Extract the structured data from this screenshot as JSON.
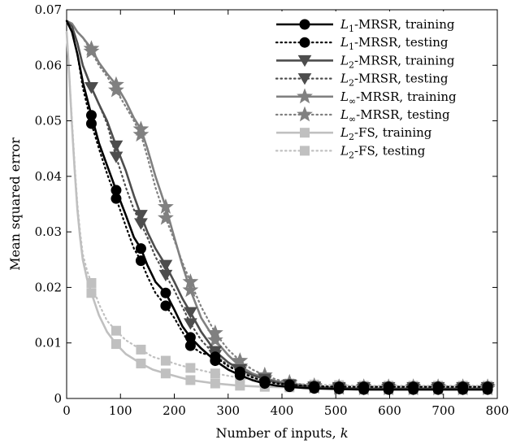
{
  "chart_data": {
    "type": "line",
    "xlabel_text": "Number of inputs, ",
    "xlabel_var": "k",
    "ylabel": "Mean squared error",
    "xlim": [
      0,
      800
    ],
    "ylim": [
      0,
      0.07
    ],
    "xticks": [
      0,
      100,
      200,
      300,
      400,
      500,
      600,
      700,
      800
    ],
    "yticks": [
      0,
      0.01,
      0.02,
      0.03,
      0.04,
      0.05,
      0.06,
      0.07
    ],
    "xtick_labels": [
      "0",
      "100",
      "200",
      "300",
      "400",
      "500",
      "600",
      "700",
      "800"
    ],
    "ytick_labels": [
      "0",
      "0.01",
      "0.02",
      "0.03",
      "0.04",
      "0.05",
      "0.06",
      "0.07"
    ],
    "grid": false,
    "legend_position": "top-right",
    "marker_x": [
      46,
      92,
      138,
      184,
      230,
      276,
      322,
      368,
      414,
      460,
      506,
      552,
      598,
      644,
      690,
      736,
      782
    ],
    "series": [
      {
        "name_var": "L",
        "name_sub": "1",
        "name_rest": "-MRSR, training",
        "color": "#000000",
        "dash": "solid",
        "marker": "circle",
        "x": [
          0,
          10,
          20,
          30,
          46,
          60,
          75,
          92,
          110,
          125,
          138,
          150,
          165,
          184,
          200,
          215,
          230,
          250,
          276,
          300,
          322,
          345,
          368,
          390,
          414,
          440,
          460,
          506,
          552,
          598,
          644,
          690,
          736,
          782
        ],
        "y": [
          0.068,
          0.066,
          0.062,
          0.057,
          0.051,
          0.046,
          0.042,
          0.0375,
          0.033,
          0.029,
          0.027,
          0.024,
          0.021,
          0.019,
          0.016,
          0.013,
          0.011,
          0.009,
          0.0068,
          0.0052,
          0.0042,
          0.0033,
          0.0027,
          0.0023,
          0.0021,
          0.0019,
          0.0018,
          0.0017,
          0.0016,
          0.0016,
          0.0016,
          0.0016,
          0.0016,
          0.0016
        ],
        "marker_y": [
          0.051,
          0.0375,
          0.027,
          0.019,
          0.011,
          0.0068,
          0.0042,
          0.0027,
          0.0021,
          0.0018,
          0.0017,
          0.0016,
          0.0016,
          0.0016,
          0.0016,
          0.0016,
          0.0016
        ]
      },
      {
        "name_var": "L",
        "name_sub": "1",
        "name_rest": "-MRSR, testing",
        "color": "#000000",
        "dash": "dotted",
        "marker": "circle",
        "x": [
          0,
          10,
          20,
          30,
          46,
          60,
          75,
          92,
          110,
          125,
          138,
          150,
          165,
          184,
          200,
          215,
          230,
          250,
          276,
          300,
          322,
          345,
          368,
          390,
          414,
          440,
          460,
          506,
          552,
          598,
          644,
          690,
          736,
          782
        ],
        "y": [
          0.068,
          0.066,
          0.062,
          0.056,
          0.0495,
          0.045,
          0.0405,
          0.036,
          0.031,
          0.027,
          0.0248,
          0.022,
          0.019,
          0.0167,
          0.0145,
          0.012,
          0.0095,
          0.0082,
          0.0075,
          0.0058,
          0.0048,
          0.0038,
          0.0031,
          0.0027,
          0.0025,
          0.0023,
          0.0022,
          0.0021,
          0.0021,
          0.0021,
          0.0021,
          0.0021,
          0.0021,
          0.0021
        ],
        "marker_y": [
          0.0495,
          0.036,
          0.0248,
          0.0167,
          0.0095,
          0.0075,
          0.0048,
          0.0031,
          0.0025,
          0.0022,
          0.0021,
          0.0021,
          0.0021,
          0.0021,
          0.0021,
          0.0021,
          0.0021
        ]
      },
      {
        "name_var": "L",
        "name_sub": "2",
        "name_rest": "-MRSR, training",
        "color": "#4d4d4d",
        "dash": "solid",
        "marker": "triangle",
        "x": [
          0,
          10,
          20,
          30,
          46,
          60,
          75,
          92,
          110,
          125,
          138,
          150,
          165,
          184,
          200,
          215,
          230,
          250,
          276,
          300,
          322,
          345,
          368,
          390,
          414,
          440,
          460,
          506,
          552,
          598,
          644,
          690,
          736,
          782
        ],
        "y": [
          0.068,
          0.067,
          0.064,
          0.06,
          0.056,
          0.053,
          0.05,
          0.0455,
          0.041,
          0.0365,
          0.033,
          0.03,
          0.027,
          0.024,
          0.021,
          0.018,
          0.0155,
          0.012,
          0.0085,
          0.0065,
          0.0052,
          0.0042,
          0.0035,
          0.0029,
          0.0025,
          0.0022,
          0.002,
          0.0018,
          0.0017,
          0.0017,
          0.0017,
          0.0017,
          0.0017,
          0.0017
        ],
        "marker_y": [
          0.056,
          0.0455,
          0.033,
          0.024,
          0.0155,
          0.0085,
          0.0052,
          0.0035,
          0.0025,
          0.002,
          0.0018,
          0.0017,
          0.0017,
          0.0017,
          0.0017,
          0.0017,
          0.0017
        ]
      },
      {
        "name_var": "L",
        "name_sub": "2",
        "name_rest": "-MRSR, testing",
        "color": "#4d4d4d",
        "dash": "dotted",
        "marker": "triangle",
        "x": [
          0,
          10,
          20,
          30,
          46,
          60,
          75,
          92,
          110,
          125,
          138,
          150,
          165,
          184,
          200,
          215,
          230,
          250,
          276,
          300,
          322,
          345,
          368,
          390,
          414,
          440,
          460,
          506,
          552,
          598,
          644,
          690,
          736,
          782
        ],
        "y": [
          0.068,
          0.067,
          0.064,
          0.06,
          0.056,
          0.053,
          0.0495,
          0.0435,
          0.038,
          0.034,
          0.0315,
          0.029,
          0.0255,
          0.0222,
          0.0195,
          0.0165,
          0.0135,
          0.0105,
          0.0078,
          0.006,
          0.0048,
          0.0038,
          0.0031,
          0.0027,
          0.0024,
          0.0022,
          0.0021,
          0.002,
          0.002,
          0.002,
          0.002,
          0.002,
          0.002,
          0.002
        ],
        "marker_y": [
          0.056,
          0.0435,
          0.0315,
          0.0222,
          0.0135,
          0.0078,
          0.0048,
          0.0031,
          0.0024,
          0.0021,
          0.002,
          0.002,
          0.002,
          0.002,
          0.002,
          0.002,
          0.002
        ]
      },
      {
        "name_var": "L",
        "name_sub": "∞",
        "name_rest": "-MRSR, training",
        "color": "#808080",
        "dash": "solid",
        "marker": "star",
        "x": [
          0,
          10,
          20,
          30,
          46,
          60,
          75,
          92,
          110,
          125,
          138,
          150,
          165,
          184,
          200,
          215,
          230,
          250,
          276,
          300,
          322,
          345,
          368,
          390,
          414,
          440,
          460,
          506,
          552,
          598,
          644,
          690,
          736,
          782
        ],
        "y": [
          0.068,
          0.0675,
          0.066,
          0.065,
          0.063,
          0.0605,
          0.0585,
          0.0565,
          0.0535,
          0.0505,
          0.0485,
          0.045,
          0.04,
          0.0345,
          0.029,
          0.024,
          0.0195,
          0.0145,
          0.0105,
          0.0078,
          0.0058,
          0.0045,
          0.0037,
          0.0031,
          0.0027,
          0.0023,
          0.0021,
          0.0019,
          0.0018,
          0.0018,
          0.0018,
          0.0018,
          0.0018,
          0.0018
        ],
        "marker_y": [
          0.063,
          0.0565,
          0.0485,
          0.0345,
          0.0195,
          0.0105,
          0.0058,
          0.0037,
          0.0027,
          0.0021,
          0.0019,
          0.0018,
          0.0018,
          0.0018,
          0.0018,
          0.0018,
          0.0018
        ]
      },
      {
        "name_var": "L",
        "name_sub": "∞",
        "name_rest": "-MRSR, testing",
        "color": "#808080",
        "dash": "dotted",
        "marker": "star",
        "x": [
          0,
          10,
          20,
          30,
          46,
          60,
          75,
          92,
          110,
          125,
          138,
          150,
          165,
          184,
          200,
          215,
          230,
          250,
          276,
          300,
          322,
          345,
          368,
          390,
          414,
          440,
          460,
          506,
          552,
          598,
          644,
          690,
          736,
          782
        ],
        "y": [
          0.068,
          0.0675,
          0.066,
          0.065,
          0.0625,
          0.06,
          0.058,
          0.0555,
          0.0525,
          0.05,
          0.0475,
          0.0435,
          0.038,
          0.0325,
          0.0285,
          0.0245,
          0.021,
          0.0165,
          0.0118,
          0.0088,
          0.0068,
          0.0052,
          0.0042,
          0.0034,
          0.0029,
          0.0025,
          0.0023,
          0.0021,
          0.0021,
          0.0021,
          0.0021,
          0.0021,
          0.0021,
          0.0021
        ],
        "marker_y": [
          0.0625,
          0.0555,
          0.0475,
          0.0325,
          0.021,
          0.0118,
          0.0068,
          0.0042,
          0.0029,
          0.0023,
          0.0021,
          0.0021,
          0.0021,
          0.0021,
          0.0021,
          0.0021,
          0.0021
        ]
      },
      {
        "name_var": "L",
        "name_sub": "2",
        "name_rest": "-FS, training",
        "color": "#c0c0c0",
        "dash": "solid",
        "marker": "square",
        "x": [
          0,
          5,
          10,
          15,
          20,
          25,
          30,
          38,
          46,
          60,
          75,
          92,
          110,
          138,
          160,
          184,
          210,
          230,
          276,
          322,
          368,
          414,
          460,
          506,
          552,
          598,
          644,
          690,
          736,
          782
        ],
        "y": [
          0.066,
          0.058,
          0.049,
          0.041,
          0.034,
          0.029,
          0.025,
          0.0215,
          0.019,
          0.015,
          0.012,
          0.0098,
          0.008,
          0.0063,
          0.0052,
          0.0045,
          0.0038,
          0.0033,
          0.0027,
          0.0023,
          0.0021,
          0.002,
          0.0019,
          0.0018,
          0.0018,
          0.0018,
          0.0018,
          0.0018,
          0.0018,
          0.0018
        ],
        "marker_y": [
          0.019,
          0.0098,
          0.0063,
          0.0045,
          0.0033,
          0.0027,
          0.0023,
          0.0021,
          0.002,
          0.0019,
          0.0018,
          0.0018,
          0.0018,
          0.0018,
          0.0018,
          0.0018,
          0.0018
        ]
      },
      {
        "name_var": "L",
        "name_sub": "2",
        "name_rest": "-FS, testing",
        "color": "#c0c0c0",
        "dash": "dotted",
        "marker": "square",
        "x": [
          0,
          5,
          10,
          15,
          20,
          25,
          30,
          38,
          46,
          60,
          75,
          92,
          110,
          138,
          160,
          184,
          210,
          230,
          276,
          322,
          368,
          414,
          460,
          506,
          552,
          598,
          644,
          690,
          736,
          782
        ],
        "y": [
          0.066,
          0.058,
          0.05,
          0.042,
          0.035,
          0.03,
          0.026,
          0.023,
          0.0208,
          0.017,
          0.014,
          0.0122,
          0.0105,
          0.0088,
          0.0075,
          0.0068,
          0.006,
          0.0055,
          0.0045,
          0.0037,
          0.0031,
          0.0027,
          0.0025,
          0.0024,
          0.0023,
          0.0023,
          0.0023,
          0.0023,
          0.0023,
          0.0023
        ],
        "marker_y": [
          0.0208,
          0.0122,
          0.0088,
          0.0068,
          0.0055,
          0.0045,
          0.0037,
          0.0031,
          0.0027,
          0.0025,
          0.0024,
          0.0023,
          0.0023,
          0.0023,
          0.0023,
          0.0023,
          0.0023
        ]
      }
    ]
  }
}
